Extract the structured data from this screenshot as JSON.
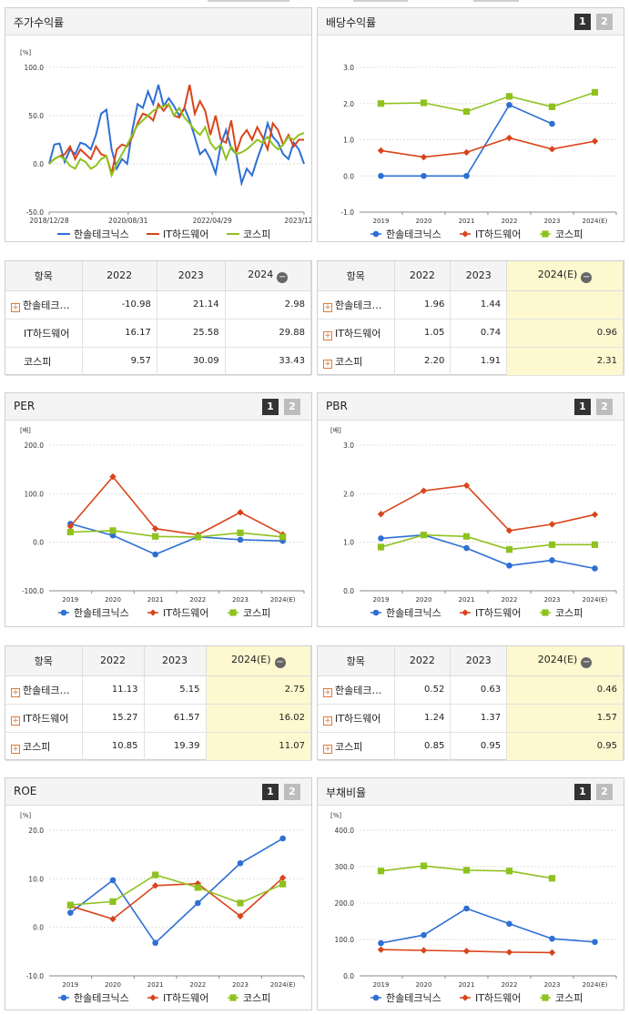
{
  "colors": {
    "series1": "#2e6fd4",
    "series2": "#d9441a",
    "series3": "#8ec21f"
  },
  "page_buttons": [
    "1",
    "2"
  ],
  "series_names": [
    "한솔테크닉스",
    "IT하드웨어",
    "코스피"
  ],
  "stock": {
    "title": "주가수익률",
    "unit": "[%]",
    "y_ticks": [
      "100.0",
      "50.0",
      "0.0",
      "-50.0"
    ],
    "x_ticks": [
      "2018/12/28",
      "2020/08/31",
      "2022/04/29",
      "2023/12/28"
    ]
  },
  "dividend": {
    "title": "배당수익률",
    "unit": "",
    "y_ticks": [
      "3.0",
      "2.0",
      "1.0",
      "0.0",
      "-1.0"
    ],
    "x_ticks": [
      "2019",
      "2020",
      "2021",
      "2022",
      "2023",
      "2024(E)"
    ]
  },
  "per": {
    "title": "PER",
    "unit": "[배]",
    "y_ticks": [
      "200.0",
      "100.0",
      "0.0",
      "-100.0"
    ],
    "x_ticks": [
      "2019",
      "2020",
      "2021",
      "2022",
      "2023",
      "2024(E)"
    ]
  },
  "pbr": {
    "title": "PBR",
    "unit": "[배]",
    "y_ticks": [
      "3.0",
      "2.0",
      "1.0",
      "0.0"
    ],
    "x_ticks": [
      "2019",
      "2020",
      "2021",
      "2022",
      "2023",
      "2024(E)"
    ]
  },
  "roe": {
    "title": "ROE",
    "unit": "[%]",
    "y_ticks": [
      "20.0",
      "10.0",
      "0.0",
      "-10.0"
    ],
    "x_ticks": [
      "2019",
      "2020",
      "2021",
      "2022",
      "2023",
      "2024(E)"
    ]
  },
  "debt": {
    "title": "부채비율",
    "unit": "[%]",
    "y_ticks": [
      "400.0",
      "300.0",
      "200.0",
      "100.0",
      "0.0"
    ],
    "x_ticks": [
      "2019",
      "2020",
      "2021",
      "2022",
      "2023",
      "2024(E)"
    ]
  },
  "tables": {
    "stock": {
      "headers": [
        "항목",
        "2022",
        "2023",
        "2024"
      ],
      "rows": [
        [
          "한솔테크…",
          "-10.98",
          "21.14",
          "2.98"
        ],
        [
          "IT하드웨어",
          "16.17",
          "25.58",
          "29.88"
        ],
        [
          "코스피",
          "9.57",
          "30.09",
          "33.43"
        ]
      ]
    },
    "dividend": {
      "headers": [
        "항목",
        "2022",
        "2023",
        "2024(E)"
      ],
      "rows": [
        [
          "한솔테크…",
          "1.96",
          "1.44",
          ""
        ],
        [
          "IT하드웨어",
          "1.05",
          "0.74",
          "0.96"
        ],
        [
          "코스피",
          "2.20",
          "1.91",
          "2.31"
        ]
      ]
    },
    "per": {
      "headers": [
        "항목",
        "2022",
        "2023",
        "2024(E)"
      ],
      "rows": [
        [
          "한솔테크…",
          "11.13",
          "5.15",
          "2.75"
        ],
        [
          "IT하드웨어",
          "15.27",
          "61.57",
          "16.02"
        ],
        [
          "코스피",
          "10.85",
          "19.39",
          "11.07"
        ]
      ]
    },
    "pbr": {
      "headers": [
        "항목",
        "2022",
        "2023",
        "2024(E)"
      ],
      "rows": [
        [
          "한솔테크…",
          "0.52",
          "0.63",
          "0.46"
        ],
        [
          "IT하드웨어",
          "1.24",
          "1.37",
          "1.57"
        ],
        [
          "코스피",
          "0.85",
          "0.95",
          "0.95"
        ]
      ]
    }
  },
  "chart_data": [
    {
      "type": "line",
      "title": "주가수익률",
      "ylabel": "[%]",
      "ylim": [
        -50,
        100
      ],
      "x_ticks": [
        "2018/12/28",
        "2020/08/31",
        "2022/04/29",
        "2023/12/28"
      ],
      "series": [
        {
          "name": "한솔테크닉스",
          "values": [
            0,
            20,
            21,
            2,
            15,
            10,
            22,
            20,
            15,
            30,
            52,
            56,
            15,
            -5,
            5,
            0,
            35,
            62,
            58,
            75,
            62,
            82,
            60,
            68,
            60,
            50,
            58,
            45,
            28,
            10,
            15,
            5,
            -10,
            20,
            35,
            16,
            10,
            -20,
            -5,
            -12,
            5,
            20,
            42,
            28,
            22,
            10,
            5,
            22,
            15,
            0
          ]
        },
        {
          "name": "IT하드웨어",
          "values": [
            0,
            5,
            8,
            10,
            18,
            5,
            15,
            10,
            5,
            18,
            10,
            8,
            -10,
            15,
            20,
            18,
            28,
            42,
            52,
            50,
            45,
            62,
            55,
            62,
            50,
            48,
            58,
            82,
            52,
            65,
            55,
            30,
            50,
            25,
            22,
            45,
            12,
            28,
            35,
            25,
            38,
            28,
            15,
            42,
            35,
            20,
            30,
            18,
            25,
            25
          ]
        },
        {
          "name": "코스피",
          "values": [
            0,
            5,
            8,
            5,
            -2,
            -5,
            5,
            2,
            -5,
            -2,
            5,
            8,
            -12,
            0,
            10,
            20,
            30,
            40,
            45,
            50,
            55,
            58,
            60,
            62,
            50,
            58,
            48,
            42,
            35,
            30,
            38,
            22,
            15,
            20,
            5,
            18,
            10,
            12,
            15,
            20,
            25,
            22,
            28,
            20,
            15,
            20,
            28,
            25,
            30,
            32
          ]
        }
      ]
    },
    {
      "type": "line",
      "title": "배당수익률",
      "ylim": [
        -1,
        3
      ],
      "categories": [
        "2019",
        "2020",
        "2021",
        "2022",
        "2023",
        "2024(E)"
      ],
      "series": [
        {
          "name": "한솔테크닉스",
          "values": [
            0,
            0,
            0,
            1.96,
            1.44,
            null
          ]
        },
        {
          "name": "IT하드웨어",
          "values": [
            0.7,
            0.52,
            0.65,
            1.05,
            0.74,
            0.96
          ]
        },
        {
          "name": "코스피",
          "values": [
            2.0,
            2.02,
            1.78,
            2.2,
            1.91,
            2.31
          ]
        }
      ]
    },
    {
      "type": "line",
      "title": "PER",
      "ylabel": "[배]",
      "ylim": [
        -100,
        200
      ],
      "categories": [
        "2019",
        "2020",
        "2021",
        "2022",
        "2023",
        "2024(E)"
      ],
      "series": [
        {
          "name": "한솔테크닉스",
          "values": [
            38,
            14,
            -25,
            11.13,
            5.15,
            2.75
          ]
        },
        {
          "name": "IT하드웨어",
          "values": [
            33,
            135,
            28,
            15.27,
            61.57,
            16.02
          ]
        },
        {
          "name": "코스피",
          "values": [
            21,
            24,
            12,
            10.85,
            19.39,
            11.07
          ]
        }
      ]
    },
    {
      "type": "line",
      "title": "PBR",
      "ylabel": "[배]",
      "ylim": [
        0,
        3
      ],
      "categories": [
        "2019",
        "2020",
        "2021",
        "2022",
        "2023",
        "2024(E)"
      ],
      "series": [
        {
          "name": "한솔테크닉스",
          "values": [
            1.08,
            1.15,
            0.88,
            0.52,
            0.63,
            0.46
          ]
        },
        {
          "name": "IT하드웨어",
          "values": [
            1.58,
            2.06,
            2.17,
            1.24,
            1.37,
            1.57
          ]
        },
        {
          "name": "코스피",
          "values": [
            0.9,
            1.15,
            1.12,
            0.85,
            0.95,
            0.95
          ]
        }
      ]
    },
    {
      "type": "line",
      "title": "ROE",
      "ylabel": "[%]",
      "ylim": [
        -10,
        20
      ],
      "categories": [
        "2019",
        "2020",
        "2021",
        "2022",
        "2023",
        "2024(E)"
      ],
      "series": [
        {
          "name": "한솔테크닉스",
          "values": [
            3.0,
            9.7,
            -3.2,
            5.0,
            13.2,
            18.3
          ]
        },
        {
          "name": "IT하드웨어",
          "values": [
            4.4,
            1.7,
            8.6,
            9.0,
            2.3,
            10.2
          ]
        },
        {
          "name": "코스피",
          "values": [
            4.6,
            5.3,
            10.8,
            8.2,
            5.0,
            8.9
          ]
        }
      ]
    },
    {
      "type": "line",
      "title": "부채비율",
      "ylabel": "[%]",
      "ylim": [
        0,
        400
      ],
      "categories": [
        "2019",
        "2020",
        "2021",
        "2022",
        "2023",
        "2024(E)"
      ],
      "series": [
        {
          "name": "한솔테크닉스",
          "values": [
            90,
            112,
            185,
            143,
            102,
            93
          ]
        },
        {
          "name": "IT하드웨어",
          "values": [
            72,
            70,
            68,
            65,
            64,
            null
          ]
        },
        {
          "name": "코스피",
          "values": [
            288,
            302,
            290,
            288,
            268,
            null
          ]
        }
      ]
    }
  ]
}
